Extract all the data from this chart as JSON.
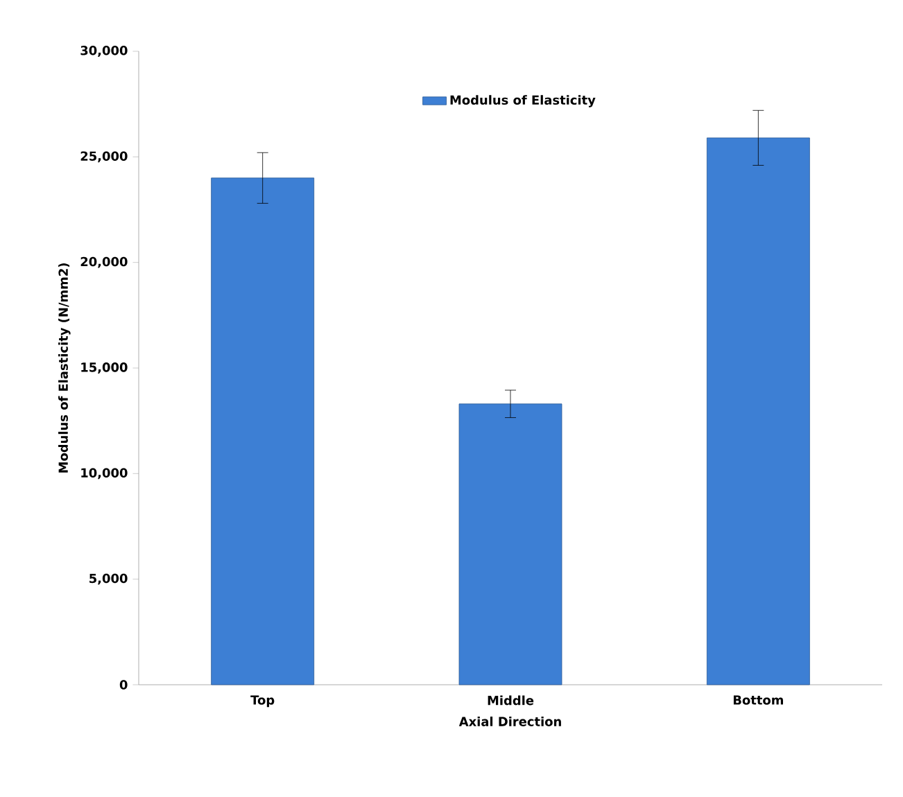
{
  "chart_data": {
    "type": "bar",
    "xlabel": "Axial Direction",
    "ylabel": "Modulus of Elasticity (N/mm2)",
    "categories": [
      "Top",
      "Middle",
      "Bottom"
    ],
    "series": [
      {
        "name": "Modulus of Elasticity",
        "color": "#3d7fd4",
        "values": [
          24000,
          13300,
          25900
        ],
        "errors": [
          1200,
          650,
          1300
        ]
      }
    ],
    "ylim": [
      0,
      30000
    ],
    "yticks": [
      {
        "value": 0,
        "label": "0"
      },
      {
        "value": 5000,
        "label": "5,000"
      },
      {
        "value": 10000,
        "label": "10,000"
      },
      {
        "value": 15000,
        "label": "15,000"
      },
      {
        "value": 20000,
        "label": "20,000"
      },
      {
        "value": 25000,
        "label": "25,000"
      },
      {
        "value": 30000,
        "label": "30,000"
      }
    ],
    "grid": false,
    "legend": "top"
  }
}
